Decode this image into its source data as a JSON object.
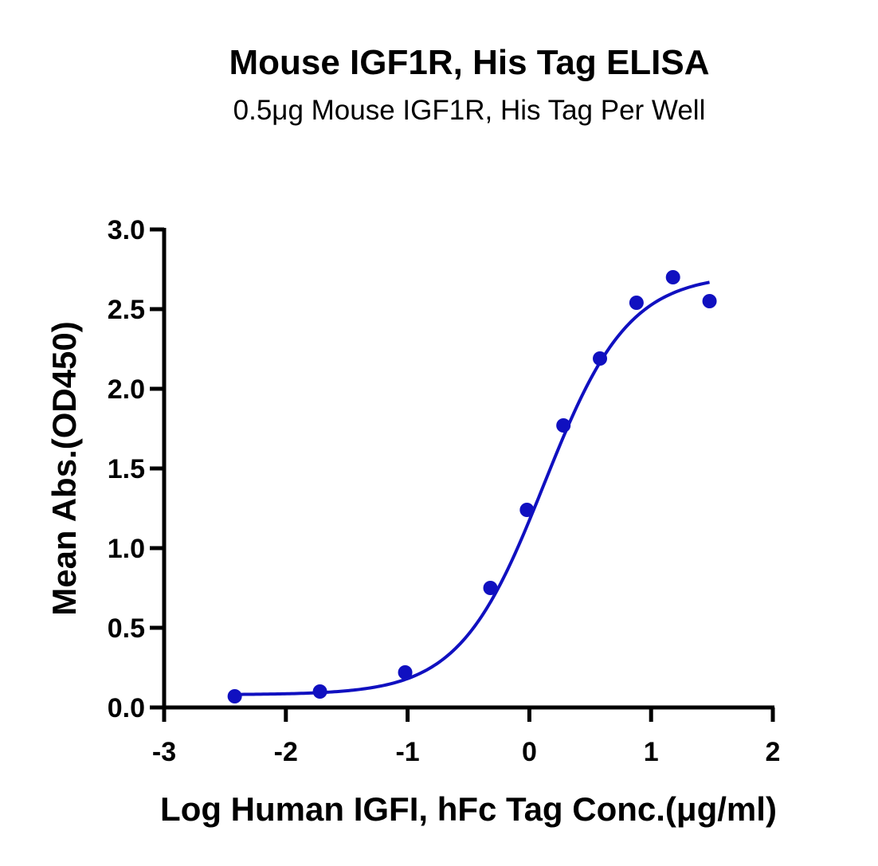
{
  "chart_data": {
    "type": "scatter",
    "title": "Mouse IGF1R, His Tag ELISA",
    "subtitle": "0.5μg Mouse IGF1R, His Tag Per Well",
    "xlabel": "Log Human IGFI, hFc Tag Conc.(μg/ml)",
    "ylabel": "Mean Abs.(OD450)",
    "xlim": [
      -3,
      2
    ],
    "ylim": [
      0,
      3.0
    ],
    "xticks": [
      -3,
      -2,
      -1,
      0,
      1,
      2
    ],
    "xtick_labels": [
      "-3",
      "-2",
      "-1",
      "0",
      "1",
      "2"
    ],
    "yticks": [
      0,
      0.5,
      1.0,
      1.5,
      2.0,
      2.5,
      3.0
    ],
    "ytick_labels": [
      "0.0",
      "0.5",
      "1.0",
      "1.5",
      "2.0",
      "2.5",
      "3.0"
    ],
    "grid": false,
    "legend": "none",
    "color": "#1010C0",
    "series": [
      {
        "x": [
          -2.42,
          -1.72,
          -1.02,
          -0.32,
          -0.02,
          0.28,
          0.58,
          0.88,
          1.18,
          1.48
        ],
        "y": [
          0.07,
          0.1,
          0.22,
          0.75,
          1.24,
          1.77,
          2.19,
          2.54,
          2.7,
          2.55
        ]
      }
    ],
    "fit_curve": {
      "model": "4PL",
      "bottom": 0.08,
      "top": 2.72,
      "ec50_log": 0.12,
      "hill": 1.25,
      "x_range": [
        -2.42,
        1.48
      ]
    }
  }
}
